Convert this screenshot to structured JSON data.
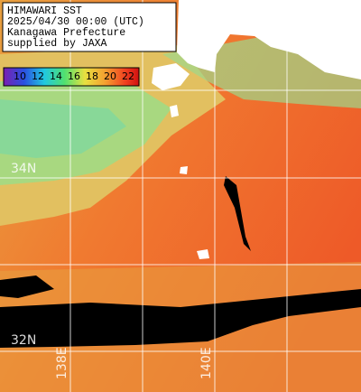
{
  "header": {
    "lines": [
      "HIMAWARI SST",
      "2025/04/30 00:00 (UTC)",
      "Kanagawa Prefecture",
      "supplied by JAXA"
    ]
  },
  "colorbar": {
    "labels": [
      "10",
      "12",
      "14",
      "16",
      "18",
      "20",
      "22"
    ]
  },
  "grid_labels": {
    "latitudes": [
      "34N",
      "32N"
    ],
    "longitudes": [
      "138E",
      "140E"
    ]
  }
}
